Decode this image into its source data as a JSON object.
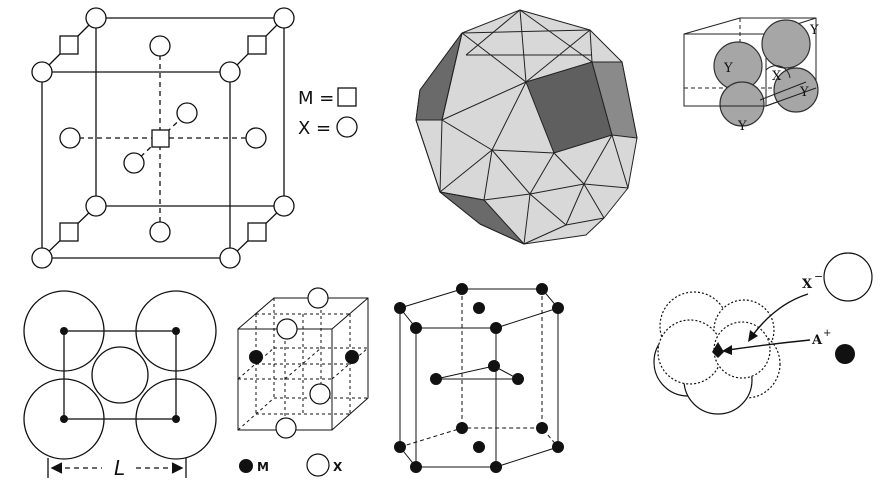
{
  "panel1": {
    "legend_m": "M =",
    "legend_x": "X ="
  },
  "panel3": {
    "y1": "Y",
    "y2": "Y",
    "y3": "Y",
    "y4": "Y",
    "y5": "Y",
    "x": "X"
  },
  "panel4": {
    "dimension_label": "L"
  },
  "panel5": {
    "legend_m": "M",
    "legend_x": "X"
  },
  "panel7": {
    "anion_label": "X",
    "anion_charge": "−",
    "cation_label": "A",
    "cation_charge": "+"
  },
  "colors": {
    "ink": "#111111",
    "face_light": "#d8d8d8",
    "face_dark": "#6a6a6a",
    "sphere_grey": "#a6a6a6"
  }
}
